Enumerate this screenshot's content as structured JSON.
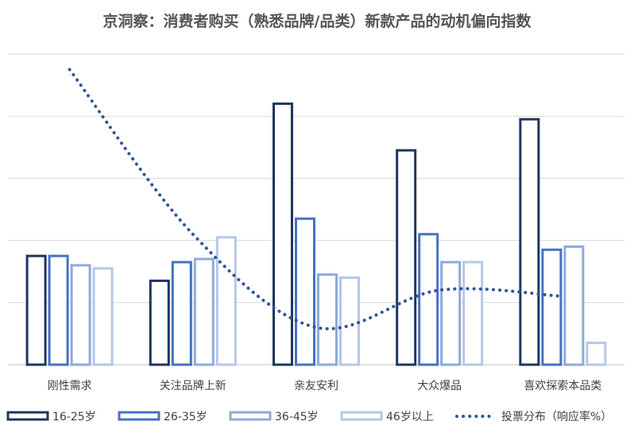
{
  "chart_data": {
    "type": "bar",
    "title": "京洞察：消费者购买（熟悉品牌/品类）新款产品的动机偏向指数",
    "categories": [
      "刚性需求",
      "关注品牌上新",
      "亲友安利",
      "大众爆品",
      "喜欢探索本品类"
    ],
    "ylim": [
      0,
      100
    ],
    "grid": true,
    "legend_position": "bottom",
    "series": [
      {
        "name": "16-25岁",
        "values": [
          35,
          27,
          84,
          69,
          79
        ],
        "color": "#1f355e"
      },
      {
        "name": "26-35岁",
        "values": [
          35,
          33,
          47,
          42,
          37
        ],
        "color": "#4472c4"
      },
      {
        "name": "36-45岁",
        "values": [
          32,
          34,
          29,
          33,
          38
        ],
        "color": "#8eaadb"
      },
      {
        "name": "46岁以上",
        "values": [
          31,
          41,
          28,
          33,
          7
        ],
        "color": "#b4c7e7"
      }
    ],
    "line_series": {
      "name": "投票分布（响应率%）",
      "type": "line",
      "style": "dotted",
      "color": "#2f5597",
      "values": [
        95,
        42,
        12,
        24,
        22
      ]
    },
    "legend": [
      "16-25岁",
      "26-35岁",
      "36-45岁",
      "46岁以上",
      "投票分布（响应率%）"
    ]
  }
}
